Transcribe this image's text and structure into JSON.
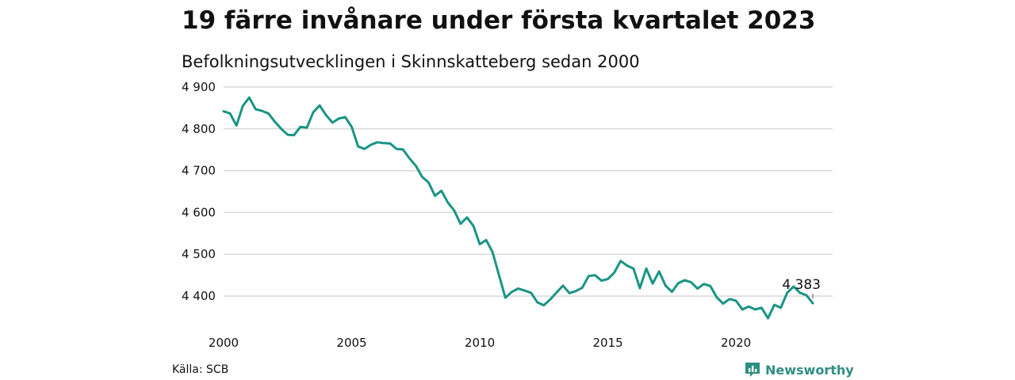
{
  "title": "19 färre invånare under första kvartalet 2023",
  "subtitle": "Befolkningsutvecklingen i Skinnskatteberg sedan 2000",
  "source": "Källa: SCB",
  "brand": "Newsworthy",
  "colors": {
    "line": "#1a9484",
    "grid": "#d9d9d9",
    "brand": "#2f8f83"
  },
  "icons": {
    "brand_logo": "bar-chart-badge-icon"
  },
  "chart_data": {
    "type": "line",
    "title": "",
    "xlabel": "",
    "ylabel": "",
    "ylim": [
      4340,
      4900
    ],
    "xlim": [
      2000,
      2024
    ],
    "y_ticks": [
      4400,
      4500,
      4600,
      4700,
      4800,
      4900
    ],
    "y_tick_labels": [
      "4 400",
      "4 500",
      "4 600",
      "4 700",
      "4 800",
      "4 900"
    ],
    "x_ticks": [
      2000,
      2005,
      2010,
      2015,
      2020
    ],
    "x_tick_labels": [
      "2000",
      "2005",
      "2010",
      "2015",
      "2020"
    ],
    "grid": "horizontal",
    "last_value_label": "4 383",
    "series": [
      {
        "points": [
          [
            "2000-Q1",
            4842
          ],
          [
            "2000-Q2",
            4837
          ],
          [
            "2000-Q3",
            4808
          ],
          [
            "2000-Q4",
            4855
          ],
          [
            "2001-Q1",
            4875
          ],
          [
            "2001-Q2",
            4847
          ],
          [
            "2001-Q3",
            4843
          ],
          [
            "2001-Q4",
            4837
          ],
          [
            "2002-Q1",
            4817
          ],
          [
            "2002-Q2",
            4800
          ],
          [
            "2002-Q3",
            4786
          ],
          [
            "2002-Q4",
            4785
          ],
          [
            "2003-Q1",
            4805
          ],
          [
            "2003-Q2",
            4803
          ],
          [
            "2003-Q3",
            4840
          ],
          [
            "2003-Q4",
            4856
          ],
          [
            "2004-Q1",
            4833
          ],
          [
            "2004-Q2",
            4815
          ],
          [
            "2004-Q3",
            4825
          ],
          [
            "2004-Q4",
            4828
          ],
          [
            "2005-Q1",
            4805
          ],
          [
            "2005-Q2",
            4758
          ],
          [
            "2005-Q3",
            4752
          ],
          [
            "2005-Q4",
            4762
          ],
          [
            "2006-Q1",
            4768
          ],
          [
            "2006-Q2",
            4766
          ],
          [
            "2006-Q3",
            4765
          ],
          [
            "2006-Q4",
            4752
          ],
          [
            "2007-Q1",
            4751
          ],
          [
            "2007-Q2",
            4730
          ],
          [
            "2007-Q3",
            4712
          ],
          [
            "2007-Q4",
            4685
          ],
          [
            "2008-Q1",
            4672
          ],
          [
            "2008-Q2",
            4640
          ],
          [
            "2008-Q3",
            4652
          ],
          [
            "2008-Q4",
            4624
          ],
          [
            "2009-Q1",
            4605
          ],
          [
            "2009-Q2",
            4573
          ],
          [
            "2009-Q3",
            4588
          ],
          [
            "2009-Q4",
            4568
          ],
          [
            "2010-Q1",
            4524
          ],
          [
            "2010-Q2",
            4534
          ],
          [
            "2010-Q3",
            4505
          ],
          [
            "2010-Q4",
            4450
          ],
          [
            "2011-Q1",
            4396
          ],
          [
            "2011-Q2",
            4410
          ],
          [
            "2011-Q3",
            4418
          ],
          [
            "2011-Q4",
            4413
          ],
          [
            "2012-Q1",
            4408
          ],
          [
            "2012-Q2",
            4385
          ],
          [
            "2012-Q3",
            4378
          ],
          [
            "2012-Q4",
            4392
          ],
          [
            "2013-Q1",
            4409
          ],
          [
            "2013-Q2",
            4425
          ],
          [
            "2013-Q3",
            4407
          ],
          [
            "2013-Q4",
            4412
          ],
          [
            "2014-Q1",
            4420
          ],
          [
            "2014-Q2",
            4448
          ],
          [
            "2014-Q3",
            4450
          ],
          [
            "2014-Q4",
            4437
          ],
          [
            "2015-Q1",
            4441
          ],
          [
            "2015-Q2",
            4456
          ],
          [
            "2015-Q3",
            4484
          ],
          [
            "2015-Q4",
            4473
          ],
          [
            "2016-Q1",
            4466
          ],
          [
            "2016-Q2",
            4419
          ],
          [
            "2016-Q3",
            4466
          ],
          [
            "2016-Q4",
            4430
          ],
          [
            "2017-Q1",
            4459
          ],
          [
            "2017-Q2",
            4425
          ],
          [
            "2017-Q3",
            4410
          ],
          [
            "2017-Q4",
            4431
          ],
          [
            "2018-Q1",
            4438
          ],
          [
            "2018-Q2",
            4433
          ],
          [
            "2018-Q3",
            4418
          ],
          [
            "2018-Q4",
            4429
          ],
          [
            "2019-Q1",
            4424
          ],
          [
            "2019-Q2",
            4397
          ],
          [
            "2019-Q3",
            4382
          ],
          [
            "2019-Q4",
            4393
          ],
          [
            "2020-Q1",
            4389
          ],
          [
            "2020-Q2",
            4368
          ],
          [
            "2020-Q3",
            4375
          ],
          [
            "2020-Q4",
            4368
          ],
          [
            "2021-Q1",
            4372
          ],
          [
            "2021-Q2",
            4347
          ],
          [
            "2021-Q3",
            4379
          ],
          [
            "2021-Q4",
            4372
          ],
          [
            "2022-Q1",
            4408
          ],
          [
            "2022-Q2",
            4423
          ],
          [
            "2022-Q3",
            4408
          ],
          [
            "2022-Q4",
            4402
          ],
          [
            "2023-Q1",
            4383
          ]
        ]
      }
    ]
  }
}
